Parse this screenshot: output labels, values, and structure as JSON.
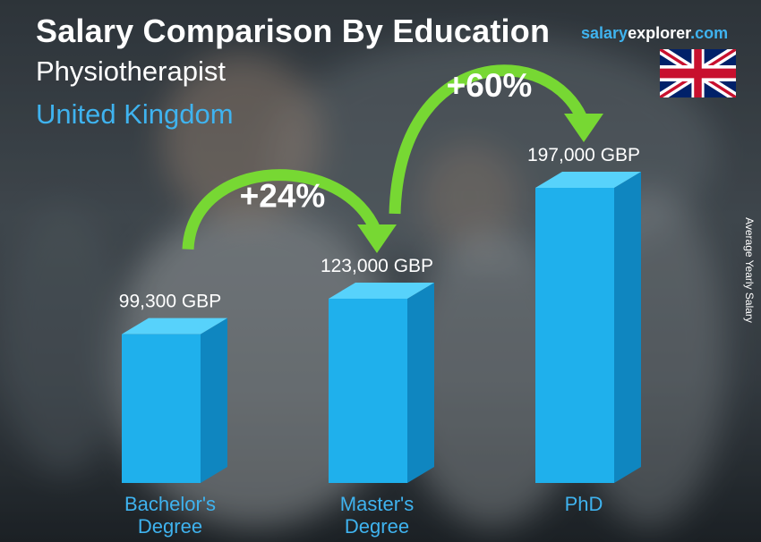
{
  "header": {
    "title": "Salary Comparison By Education",
    "subtitle": "Physiotherapist",
    "country": "United Kingdom"
  },
  "brand": {
    "part1": "salary",
    "part2": "explorer",
    "part3": ".com"
  },
  "side_label": "Average Yearly Salary",
  "colors": {
    "bar_front": "#1fb0ec",
    "bar_side": "#0f86c0",
    "bar_top": "#57d2fb",
    "arrow": "#77d833",
    "label_blue": "#3fb3ef"
  },
  "chart_data": {
    "type": "bar",
    "title": "Salary Comparison By Education",
    "xlabel": "",
    "ylabel": "Average Yearly Salary",
    "unit": "GBP",
    "categories": [
      [
        "Bachelor's",
        "Degree"
      ],
      [
        "Master's",
        "Degree"
      ],
      [
        "PhD"
      ]
    ],
    "values": [
      99300,
      123000,
      197000
    ],
    "value_labels": [
      "99,300 GBP",
      "123,000 GBP",
      "197,000 GBP"
    ],
    "changes": [
      "+24%",
      "+60%"
    ],
    "grid": false,
    "legend": "none"
  }
}
